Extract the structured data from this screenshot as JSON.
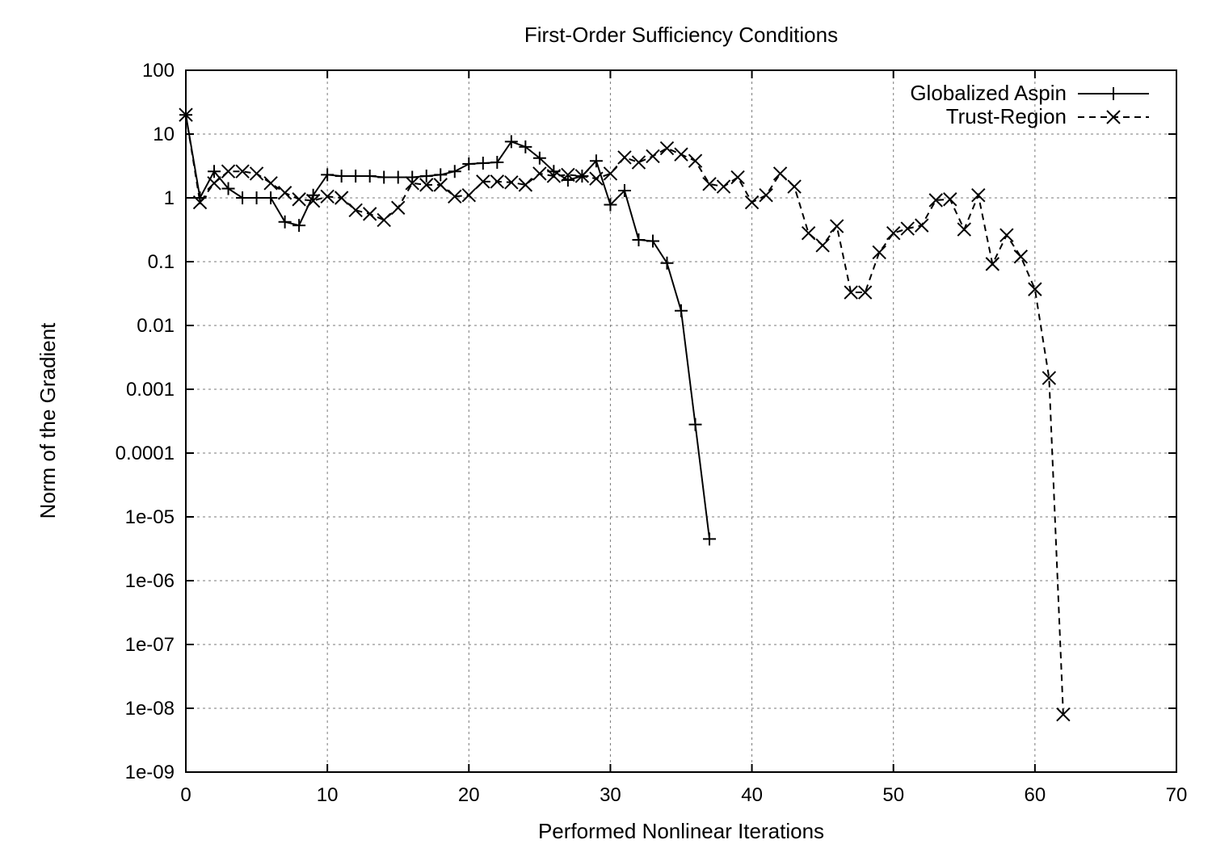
{
  "chart_data": {
    "type": "line",
    "title": "First-Order Sufficiency Conditions",
    "xlabel": "Performed Nonlinear Iterations",
    "ylabel": "Norm of the Gradient",
    "xlim": [
      0,
      70
    ],
    "ylim": [
      1e-09,
      100
    ],
    "yscale": "log",
    "grid": true,
    "legend_position": "top-right",
    "x_ticks": [
      "0",
      "10",
      "20",
      "30",
      "40",
      "50",
      "60",
      "70"
    ],
    "y_ticks": [
      "1e-09",
      "1e-08",
      "1e-07",
      "1e-06",
      "1e-05",
      "0.0001",
      "0.001",
      "0.01",
      "0.1",
      "1",
      "10",
      "100"
    ],
    "series": [
      {
        "name": "Globalized Aspin",
        "line_style": "solid",
        "marker": "plus",
        "x": [
          0,
          1,
          2,
          3,
          4,
          5,
          6,
          7,
          8,
          9,
          10,
          11,
          12,
          13,
          14,
          15,
          16,
          17,
          18,
          19,
          20,
          21,
          22,
          23,
          24,
          25,
          26,
          27,
          28,
          29,
          30,
          31,
          32,
          33,
          34,
          35,
          36,
          37
        ],
        "y": [
          20,
          1.0,
          2.6,
          1.4,
          1.0,
          1.0,
          1.0,
          0.42,
          0.37,
          1.1,
          2.3,
          2.2,
          2.2,
          2.2,
          2.1,
          2.1,
          2.1,
          2.2,
          2.3,
          2.6,
          3.4,
          3.5,
          3.6,
          7.6,
          6.3,
          4.2,
          2.6,
          1.9,
          2.2,
          3.8,
          0.78,
          1.3,
          0.22,
          0.21,
          0.095,
          0.017,
          0.00028,
          4.5e-06
        ]
      },
      {
        "name": "Trust-Region",
        "line_style": "dashed",
        "marker": "cross",
        "x": [
          0,
          1,
          2,
          3,
          4,
          5,
          6,
          7,
          8,
          9,
          10,
          11,
          12,
          13,
          14,
          15,
          16,
          17,
          18,
          19,
          20,
          21,
          22,
          23,
          24,
          25,
          26,
          27,
          28,
          29,
          30,
          31,
          32,
          33,
          34,
          35,
          36,
          37,
          38,
          39,
          40,
          41,
          42,
          43,
          44,
          45,
          46,
          47,
          48,
          49,
          50,
          51,
          52,
          53,
          54,
          55,
          56,
          57,
          58,
          59,
          60,
          61,
          62
        ],
        "y": [
          20,
          0.85,
          1.7,
          2.6,
          2.6,
          2.4,
          1.7,
          1.2,
          0.95,
          0.9,
          1.05,
          1.0,
          0.64,
          0.56,
          0.45,
          0.7,
          1.7,
          1.6,
          1.6,
          1.05,
          1.1,
          1.8,
          1.8,
          1.75,
          1.6,
          2.4,
          2.2,
          2.3,
          2.2,
          2.0,
          2.4,
          4.3,
          3.6,
          4.5,
          6.0,
          4.8,
          3.8,
          1.65,
          1.5,
          2.1,
          0.85,
          1.1,
          2.4,
          1.5,
          0.28,
          0.18,
          0.36,
          0.033,
          0.033,
          0.14,
          0.28,
          0.33,
          0.37,
          0.92,
          0.95,
          0.32,
          1.1,
          0.092,
          0.26,
          0.12,
          0.037,
          0.0015,
          8e-09
        ]
      }
    ]
  }
}
